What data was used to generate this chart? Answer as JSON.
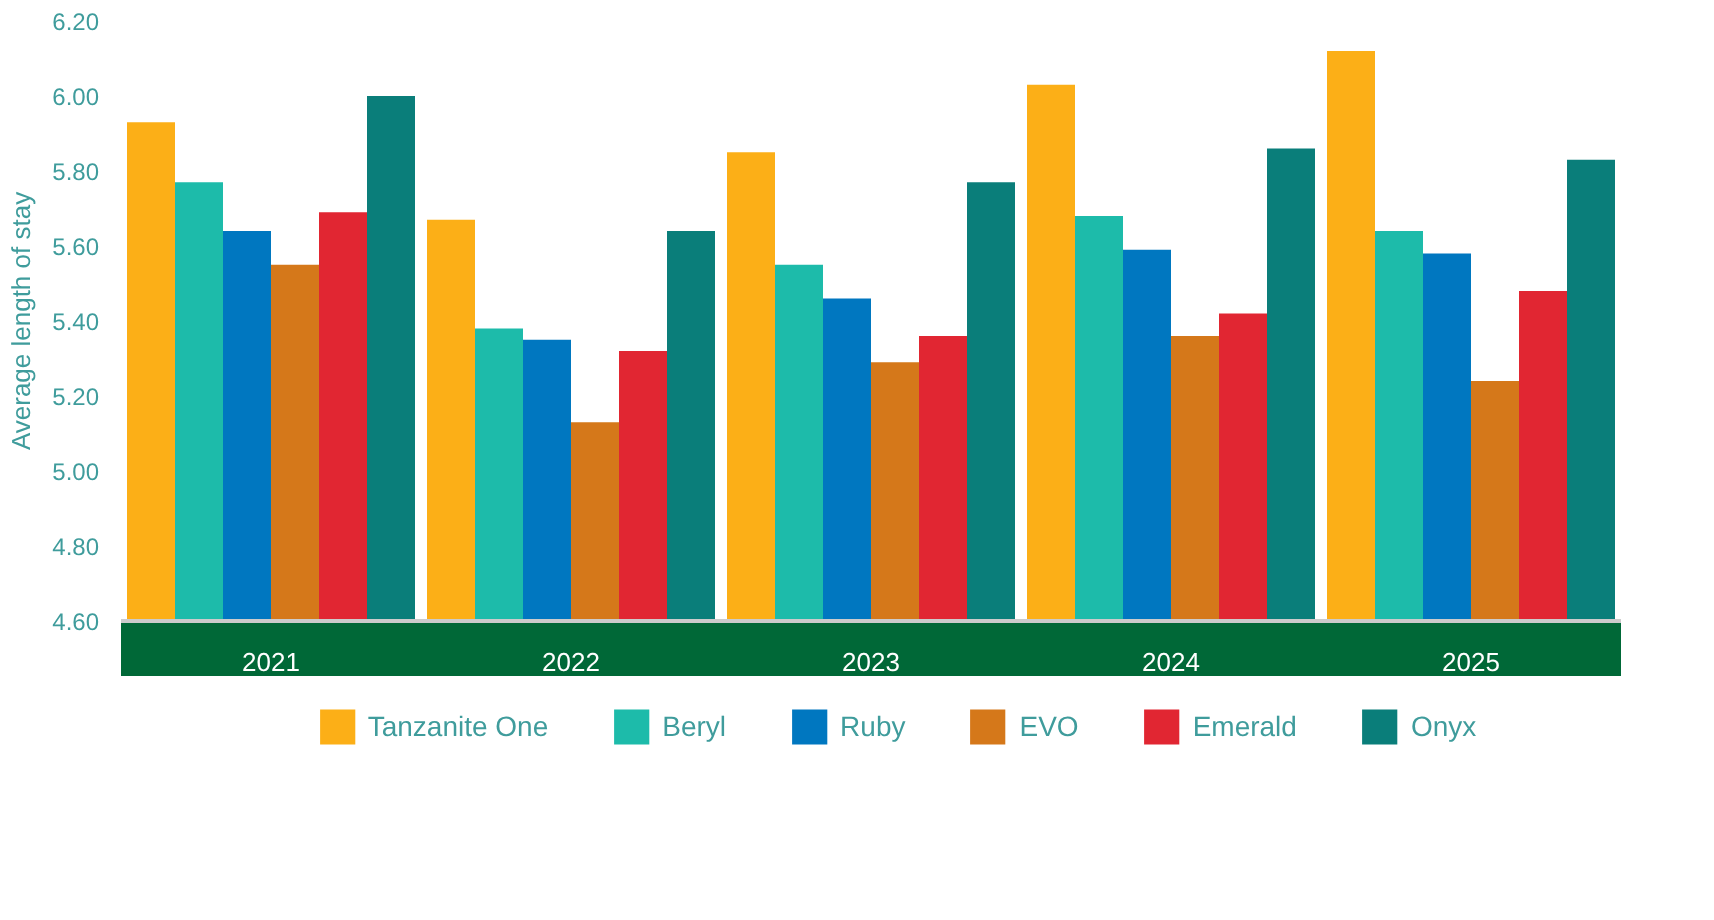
{
  "chart_data": {
    "type": "bar",
    "ylabel": "Average length of stay",
    "categories": [
      "2021",
      "2022",
      "2023",
      "2024",
      "2025"
    ],
    "series": [
      {
        "name": "Tanzanite One",
        "color": "#fcaf17",
        "values": [
          5.93,
          5.67,
          5.85,
          6.03,
          6.12
        ]
      },
      {
        "name": "Beryl",
        "color": "#1dbbaa",
        "values": [
          5.77,
          5.38,
          5.55,
          5.68,
          5.64
        ]
      },
      {
        "name": "Ruby",
        "color": "#0077c0",
        "values": [
          5.64,
          5.35,
          5.46,
          5.59,
          5.58
        ]
      },
      {
        "name": "EVO",
        "color": "#d5781a",
        "values": [
          5.55,
          5.13,
          5.29,
          5.36,
          5.24
        ]
      },
      {
        "name": "Emerald",
        "color": "#e12632",
        "values": [
          5.69,
          5.32,
          5.36,
          5.42,
          5.48
        ]
      },
      {
        "name": "Onyx",
        "color": "#0a7e7a",
        "values": [
          6.0,
          5.64,
          5.77,
          5.86,
          5.83
        ]
      }
    ],
    "ylim": [
      4.6,
      6.2
    ],
    "yticks": [
      {
        "value": 4.6,
        "label": "4.60"
      },
      {
        "value": 4.8,
        "label": "4.80"
      },
      {
        "value": 5.0,
        "label": "5.00"
      },
      {
        "value": 5.2,
        "label": "5.20"
      },
      {
        "value": 5.4,
        "label": "5.40"
      },
      {
        "value": 5.6,
        "label": "5.60"
      },
      {
        "value": 5.8,
        "label": "5.80"
      },
      {
        "value": 6.0,
        "label": "6.00"
      },
      {
        "value": 6.2,
        "label": "6.20"
      }
    ],
    "grid": false,
    "legend": "bottom"
  }
}
